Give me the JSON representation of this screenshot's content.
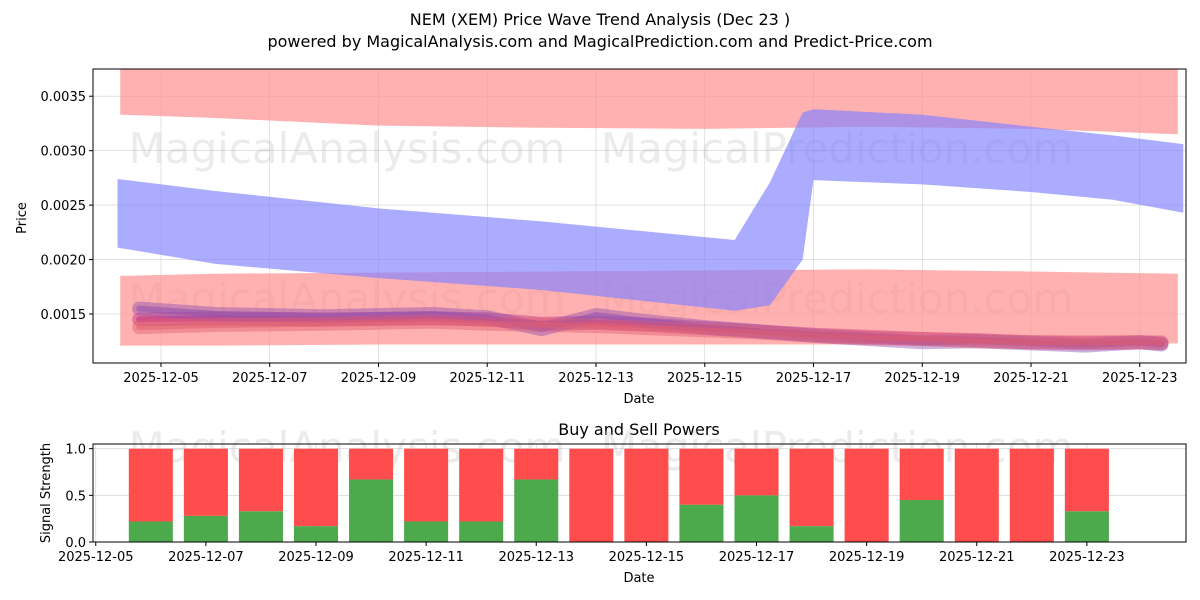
{
  "chart_data": [
    {
      "type": "area",
      "title": "NEM (XEM) Price Wave Trend Analysis (Dec 23 )",
      "subtitle": "powered by MagicalAnalysis.com and MagicalPrediction.com and Predict-Price.com",
      "xlabel": "Date",
      "ylabel": "Price",
      "ylim": [
        0.00105,
        0.00375
      ],
      "yticks": [
        0.0015,
        0.002,
        0.0025,
        0.003,
        0.0035
      ],
      "ytick_labels": [
        "0.0015",
        "0.0020",
        "0.0025",
        "0.0030",
        "0.0035"
      ],
      "xlim_day": [
        3.75,
        23.85
      ],
      "xticks_day": [
        5,
        7,
        9,
        11,
        13,
        15,
        17,
        19,
        21,
        23
      ],
      "xtick_labels": [
        "2025-12-05",
        "2025-12-07",
        "2025-12-09",
        "2025-12-11",
        "2025-12-13",
        "2025-12-15",
        "2025-12-17",
        "2025-12-19",
        "2025-12-21",
        "2025-12-23"
      ],
      "grid": true,
      "bands": [
        {
          "name": "upper-red-band",
          "color": "#ff9090",
          "opacity": 0.7,
          "day": [
            4.25,
            6,
            9,
            12,
            15,
            18,
            21,
            23.7
          ],
          "top": [
            0.00375,
            0.00375,
            0.00375,
            0.00375,
            0.00375,
            0.00375,
            0.00375,
            0.00375
          ],
          "bottom": [
            0.00333,
            0.0033,
            0.00323,
            0.00321,
            0.0032,
            0.00322,
            0.0032,
            0.00315
          ]
        },
        {
          "name": "lower-red-band",
          "color": "#ff9090",
          "opacity": 0.7,
          "day": [
            4.25,
            6,
            9,
            12,
            15,
            18,
            21,
            23.7
          ],
          "top": [
            0.00185,
            0.00187,
            0.00188,
            0.00189,
            0.0019,
            0.00191,
            0.00189,
            0.00187
          ],
          "bottom": [
            0.00121,
            0.00121,
            0.00122,
            0.00122,
            0.00122,
            0.00122,
            0.00122,
            0.00123
          ]
        },
        {
          "name": "blue-wave-band",
          "color": "#8080ff",
          "opacity": 0.65,
          "day": [
            4.2,
            6,
            9,
            12,
            15.55,
            16.2,
            16.8,
            17,
            19,
            21,
            22.5,
            23.8
          ],
          "top": [
            0.00274,
            0.00263,
            0.00247,
            0.00235,
            0.00218,
            0.00271,
            0.00335,
            0.00338,
            0.00333,
            0.00322,
            0.00314,
            0.00306
          ],
          "bottom": [
            0.00211,
            0.00196,
            0.00183,
            0.00172,
            0.00153,
            0.00158,
            0.002,
            0.00273,
            0.00269,
            0.00262,
            0.00255,
            0.00243
          ]
        }
      ],
      "series": [
        {
          "name": "price-wave-1",
          "color": "#c03080",
          "day": [
            4.6,
            6,
            8,
            10,
            11,
            12,
            13,
            14,
            15,
            16,
            17,
            18,
            19,
            20,
            21,
            22,
            23,
            23.4
          ],
          "values": [
            0.00145,
            0.00146,
            0.00145,
            0.00146,
            0.00145,
            0.00141,
            0.00142,
            0.0014,
            0.00137,
            0.00134,
            0.00131,
            0.00129,
            0.00127,
            0.00126,
            0.00124,
            0.00123,
            0.00124,
            0.00123
          ]
        },
        {
          "name": "price-wave-2",
          "color": "#9050b0",
          "day": [
            4.6,
            6,
            8,
            10,
            11,
            12,
            13,
            14,
            15,
            16,
            17,
            18,
            19,
            20,
            21,
            22,
            23,
            23.4
          ],
          "values": [
            0.00155,
            0.0015,
            0.00148,
            0.0015,
            0.00147,
            0.00136,
            0.00149,
            0.00143,
            0.00138,
            0.00134,
            0.0013,
            0.00127,
            0.00124,
            0.00125,
            0.00123,
            0.00121,
            0.00124,
            0.00122
          ]
        },
        {
          "name": "price-wave-3",
          "color": "#e06070",
          "day": [
            4.6,
            6,
            8,
            10,
            11,
            12,
            13,
            14,
            15,
            16,
            17,
            18,
            19,
            20,
            21,
            22,
            23,
            23.4
          ],
          "values": [
            0.00138,
            0.0014,
            0.00141,
            0.00143,
            0.00141,
            0.0014,
            0.00139,
            0.00137,
            0.00135,
            0.00133,
            0.0013,
            0.00128,
            0.00127,
            0.00125,
            0.00124,
            0.00124,
            0.00124,
            0.00124
          ]
        }
      ],
      "watermark": [
        "MagicalAnalysis.com",
        "MagicalPrediction.com"
      ]
    },
    {
      "type": "bar",
      "title": "Buy and Sell Powers",
      "xlabel": "Date",
      "ylabel": "Signal Strength",
      "ylim": [
        0,
        1.05
      ],
      "yticks": [
        0.0,
        0.5,
        1.0
      ],
      "ytick_labels": [
        "0.0",
        "0.5",
        "1.0"
      ],
      "xlim_day": [
        4.95,
        24.8
      ],
      "xticks_day": [
        5,
        7,
        9,
        11,
        13,
        15,
        17,
        19,
        21,
        23
      ],
      "xtick_labels": [
        "2025-12-05",
        "2025-12-07",
        "2025-12-09",
        "2025-12-11",
        "2025-12-13",
        "2025-12-15",
        "2025-12-17",
        "2025-12-19",
        "2025-12-21",
        "2025-12-23"
      ],
      "grid": true,
      "categories_day": [
        6,
        7,
        8,
        9,
        10,
        11,
        12,
        13,
        14,
        15,
        16,
        17,
        18,
        19,
        20,
        21,
        22,
        23
      ],
      "series": [
        {
          "name": "Buy",
          "color": "#4caa4c",
          "values": [
            0.22,
            0.28,
            0.33,
            0.17,
            0.67,
            0.22,
            0.22,
            0.67,
            0.0,
            0.0,
            0.4,
            0.5,
            0.17,
            0.0,
            0.45,
            0.0,
            0.0,
            0.33
          ]
        },
        {
          "name": "Sell",
          "color": "#ff4c4c",
          "values": [
            0.78,
            0.72,
            0.67,
            0.83,
            0.33,
            0.78,
            0.78,
            0.33,
            1.0,
            1.0,
            0.6,
            0.5,
            0.83,
            1.0,
            0.55,
            1.0,
            1.0,
            0.67
          ]
        }
      ],
      "watermark": [
        "MagicalAnalysis.com",
        "MagicalPrediction.com"
      ]
    }
  ]
}
